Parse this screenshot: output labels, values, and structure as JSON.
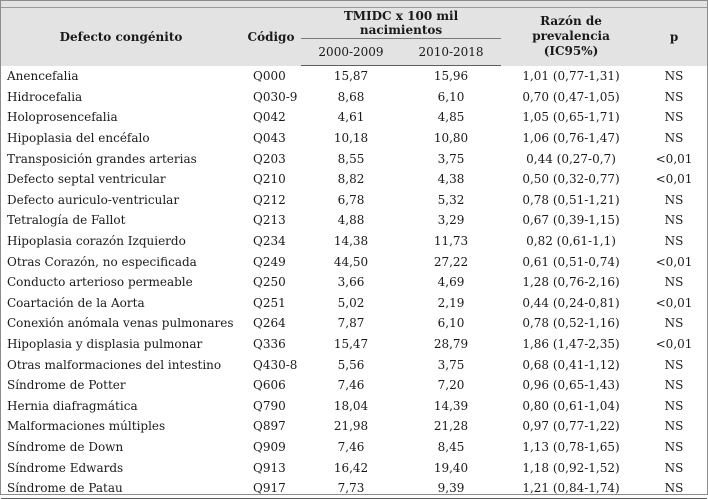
{
  "header": {
    "col_name": "Defecto congénito",
    "col_code": "Código",
    "col_tmidc": "TMIDC x 100 mil nacimientos",
    "col_period1": "2000-2009",
    "col_period2": "2010-2018",
    "col_razon_line1": "Razón de prevalencia",
    "col_razon_line2": "(IC95%)",
    "col_p": "p"
  },
  "rows": [
    {
      "name": "Anencefalia",
      "code": "Q000",
      "v1": "15,87",
      "v2": "15,96",
      "rp": "1,01 (0,77-1,31)",
      "p": "NS"
    },
    {
      "name": "Hidrocefalia",
      "code": "Q030-9",
      "v1": "8,68",
      "v2": "6,10",
      "rp": "0,70 (0,47-1,05)",
      "p": "NS"
    },
    {
      "name": "Holoprosencefalia",
      "code": "Q042",
      "v1": "4,61",
      "v2": "4,85",
      "rp": "1,05 (0,65-1,71)",
      "p": "NS"
    },
    {
      "name": "Hipoplasia del encéfalo",
      "code": "Q043",
      "v1": "10,18",
      "v2": "10,80",
      "rp": "1,06 (0,76-1,47)",
      "p": "NS"
    },
    {
      "name": "Transposición grandes arterias",
      "code": "Q203",
      "v1": "8,55",
      "v2": "3,75",
      "rp": "0,44 (0,27-0,7)",
      "p": "<0,01"
    },
    {
      "name": "Defecto septal ventricular",
      "code": "Q210",
      "v1": "8,82",
      "v2": "4,38",
      "rp": "0,50 (0,32-0,77)",
      "p": "<0,01"
    },
    {
      "name": "Defecto auriculo-ventricular",
      "code": "Q212",
      "v1": "6,78",
      "v2": "5,32",
      "rp": "0,78 (0,51-1,21)",
      "p": "NS"
    },
    {
      "name": "Tetralogía de Fallot",
      "code": "Q213",
      "v1": "4,88",
      "v2": "3,29",
      "rp": "0,67 (0,39-1,15)",
      "p": "NS"
    },
    {
      "name": "Hipoplasia corazón Izquierdo",
      "code": "Q234",
      "v1": "14,38",
      "v2": "11,73",
      "rp": "0,82 (0,61-1,1)",
      "p": "NS"
    },
    {
      "name": "Otras Corazón, no especificada",
      "code": "Q249",
      "v1": "44,50",
      "v2": "27,22",
      "rp": "0,61 (0,51-0,74)",
      "p": "<0,01"
    },
    {
      "name": "Conducto arterioso permeable",
      "code": "Q250",
      "v1": "3,66",
      "v2": "4,69",
      "rp": "1,28 (0,76-2,16)",
      "p": "NS"
    },
    {
      "name": "Coartación de la Aorta",
      "code": "Q251",
      "v1": "5,02",
      "v2": "2,19",
      "rp": "0,44 (0,24-0,81)",
      "p": "<0,01"
    },
    {
      "name": "Conexión anómala venas pulmonares",
      "code": "Q264",
      "v1": "7,87",
      "v2": "6,10",
      "rp": "0,78 (0,52-1,16)",
      "p": "NS"
    },
    {
      "name": "Hipoplasia y displasia pulmonar",
      "code": "Q336",
      "v1": "15,47",
      "v2": "28,79",
      "rp": "1,86 (1,47-2,35)",
      "p": "<0,01"
    },
    {
      "name": "Otras malformaciones del intestino",
      "code": "Q430-8",
      "v1": "5,56",
      "v2": "3,75",
      "rp": "0,68 (0,41-1,12)",
      "p": "NS"
    },
    {
      "name": "Síndrome de Potter",
      "code": "Q606",
      "v1": "7,46",
      "v2": "7,20",
      "rp": "0,96 (0,65-1,43)",
      "p": "NS"
    },
    {
      "name": "Hernia diafragmática",
      "code": "Q790",
      "v1": "18,04",
      "v2": "14,39",
      "rp": "0,80 (0,61-1,04)",
      "p": "NS"
    },
    {
      "name": "Malformaciones múltiples",
      "code": "Q897",
      "v1": "21,98",
      "v2": "21,28",
      "rp": "0,97 (0,77-1,22)",
      "p": "NS"
    },
    {
      "name": "Síndrome de Down",
      "code": "Q909",
      "v1": "7,46",
      "v2": "8,45",
      "rp": "1,13 (0,78-1,65)",
      "p": "NS"
    },
    {
      "name": "Síndrome Edwards",
      "code": "Q913",
      "v1": "16,42",
      "v2": "19,40",
      "rp": "1,18 (0,92-1,52)",
      "p": "NS"
    },
    {
      "name": "Síndrome de Patau",
      "code": "Q917",
      "v1": "7,73",
      "v2": "9,39",
      "rp": "1,21 (0,84-1,74)",
      "p": "NS"
    }
  ]
}
